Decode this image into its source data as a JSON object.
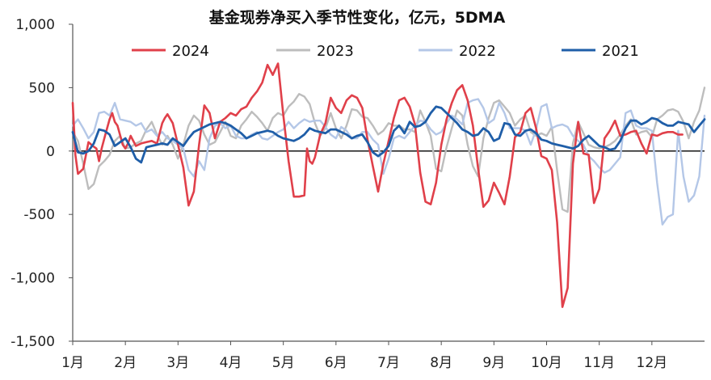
{
  "chart_data": {
    "type": "line",
    "title": "基金现券净买入季节性变化，亿元，5DMA",
    "xlabel": "",
    "ylabel": "",
    "x_range": [
      0,
      12
    ],
    "ylim": [
      -1500,
      1000
    ],
    "y_ticks": [
      1000,
      500,
      0,
      -500,
      -1000,
      -1500
    ],
    "y_tick_labels": [
      "1,000",
      "500",
      "0",
      "-500",
      "-1,000",
      "-1,500"
    ],
    "x_ticks": [
      0,
      1,
      2,
      3,
      4,
      5,
      6,
      7,
      8,
      9,
      10,
      11
    ],
    "x_tick_labels": [
      "1月",
      "2月",
      "3月",
      "4月",
      "5月",
      "6月",
      "7月",
      "8月",
      "9月",
      "10月",
      "11月",
      "12月"
    ],
    "legend_position": "top",
    "grid": false,
    "series": [
      {
        "name": "2024",
        "color": "#e0404a",
        "x": [
          0.0,
          0.05,
          0.1,
          0.2,
          0.3,
          0.38,
          0.45,
          0.5,
          0.55,
          0.62,
          0.7,
          0.75,
          0.8,
          0.85,
          0.95,
          1.0,
          1.05,
          1.1,
          1.2,
          1.3,
          1.4,
          1.5,
          1.6,
          1.7,
          1.75,
          1.8,
          1.9,
          2.0,
          2.1,
          2.2,
          2.3,
          2.4,
          2.5,
          2.6,
          2.7,
          2.8,
          2.9,
          3.0,
          3.1,
          3.2,
          3.3,
          3.4,
          3.5,
          3.6,
          3.7,
          3.8,
          3.9,
          4.0,
          4.1,
          4.2,
          4.3,
          4.4,
          4.45,
          4.5,
          4.55,
          4.6,
          4.7,
          4.8,
          4.9,
          5.0,
          5.1,
          5.2,
          5.3,
          5.4,
          5.5,
          5.6,
          5.7,
          5.8,
          5.9,
          6.0,
          6.1,
          6.2,
          6.3,
          6.4,
          6.5,
          6.6,
          6.7,
          6.8,
          6.9,
          7.0,
          7.1,
          7.2,
          7.3,
          7.4,
          7.5,
          7.6,
          7.7,
          7.8,
          7.9,
          8.0,
          8.1,
          8.2,
          8.3,
          8.4,
          8.5,
          8.6,
          8.7,
          8.8,
          8.9,
          9.0,
          9.1,
          9.2,
          9.3,
          9.4,
          9.5,
          9.6,
          9.7,
          9.8,
          9.9,
          10.0,
          10.1,
          10.2,
          10.3,
          10.4,
          10.5,
          10.6,
          10.7,
          10.8,
          10.9,
          11.0,
          11.1,
          11.2,
          11.3,
          11.4,
          11.5,
          11.58
        ],
        "values": [
          380,
          -30,
          -180,
          -140,
          70,
          40,
          20,
          -80,
          20,
          130,
          250,
          300,
          230,
          200,
          50,
          20,
          60,
          120,
          40,
          60,
          70,
          80,
          60,
          220,
          260,
          290,
          220,
          50,
          -130,
          -430,
          -320,
          50,
          360,
          300,
          100,
          230,
          260,
          300,
          280,
          330,
          350,
          420,
          470,
          540,
          680,
          600,
          690,
          280,
          -80,
          -360,
          -360,
          -350,
          20,
          -80,
          -100,
          -50,
          130,
          220,
          420,
          340,
          300,
          400,
          440,
          420,
          340,
          90,
          -120,
          -320,
          -100,
          80,
          260,
          400,
          420,
          350,
          210,
          -170,
          -400,
          -420,
          -250,
          50,
          250,
          380,
          480,
          520,
          400,
          200,
          -140,
          -440,
          -390,
          -250,
          -330,
          -420,
          -200,
          110,
          150,
          300,
          340,
          180,
          -40,
          -60,
          -150,
          -560,
          -1230,
          -1080,
          -100,
          230,
          -20,
          -30,
          -410,
          -300,
          100,
          160,
          240,
          120,
          130,
          150,
          160,
          60,
          -20,
          130,
          120,
          140,
          150,
          150,
          130,
          130
        ]
      },
      {
        "name": "2023",
        "color": "#bdbdbd",
        "x": [
          0.0,
          0.1,
          0.2,
          0.3,
          0.4,
          0.5,
          0.6,
          0.7,
          0.8,
          0.9,
          1.0,
          1.1,
          1.2,
          1.3,
          1.4,
          1.5,
          1.6,
          1.7,
          1.8,
          1.9,
          2.0,
          2.1,
          2.2,
          2.3,
          2.4,
          2.5,
          2.6,
          2.7,
          2.8,
          2.9,
          3.0,
          3.1,
          3.2,
          3.3,
          3.4,
          3.5,
          3.6,
          3.7,
          3.8,
          3.9,
          4.0,
          4.1,
          4.2,
          4.3,
          4.4,
          4.5,
          4.6,
          4.7,
          4.8,
          4.9,
          5.0,
          5.1,
          5.2,
          5.3,
          5.4,
          5.5,
          5.6,
          5.7,
          5.8,
          5.9,
          6.0,
          6.1,
          6.2,
          6.3,
          6.4,
          6.5,
          6.6,
          6.7,
          6.8,
          6.9,
          7.0,
          7.1,
          7.2,
          7.3,
          7.4,
          7.5,
          7.6,
          7.7,
          7.8,
          7.9,
          8.0,
          8.1,
          8.2,
          8.3,
          8.4,
          8.5,
          8.6,
          8.7,
          8.8,
          8.9,
          9.0,
          9.1,
          9.2,
          9.3,
          9.4,
          9.5,
          9.6,
          9.7,
          9.8,
          9.9,
          10.0,
          10.1,
          10.2,
          10.3,
          10.4,
          10.5,
          10.6,
          10.7,
          10.8,
          10.9,
          11.0,
          11.1,
          11.2,
          11.3,
          11.4,
          11.5,
          11.6,
          11.7,
          11.8,
          11.9,
          12.0
        ],
        "values": [
          150,
          80,
          -100,
          -300,
          -260,
          -120,
          -80,
          -30,
          80,
          120,
          20,
          30,
          60,
          80,
          170,
          230,
          130,
          50,
          120,
          50,
          -60,
          50,
          200,
          280,
          240,
          130,
          50,
          70,
          150,
          230,
          120,
          100,
          200,
          250,
          310,
          270,
          220,
          160,
          260,
          300,
          280,
          350,
          390,
          450,
          430,
          370,
          220,
          120,
          180,
          300,
          180,
          100,
          200,
          330,
          320,
          270,
          260,
          200,
          130,
          160,
          220,
          200,
          200,
          170,
          170,
          150,
          320,
          230,
          120,
          -140,
          -160,
          30,
          180,
          320,
          280,
          50,
          -120,
          -200,
          100,
          260,
          380,
          400,
          350,
          300,
          200,
          250,
          280,
          150,
          120,
          140,
          120,
          190,
          -150,
          -460,
          -480,
          60,
          230,
          140,
          50,
          30,
          20,
          30,
          50,
          80,
          130,
          200,
          250,
          130,
          150,
          160,
          110,
          250,
          280,
          320,
          330,
          310,
          230,
          100,
          230,
          320,
          500
        ]
      },
      {
        "name": "2022",
        "color": "#b4c7e7",
        "x": [
          0.0,
          0.1,
          0.2,
          0.3,
          0.4,
          0.5,
          0.6,
          0.7,
          0.8,
          0.9,
          1.0,
          1.1,
          1.2,
          1.3,
          1.4,
          1.5,
          1.6,
          1.7,
          1.8,
          1.9,
          2.0,
          2.1,
          2.2,
          2.3,
          2.4,
          2.5,
          2.6,
          2.7,
          2.8,
          2.9,
          3.0,
          3.1,
          3.2,
          3.3,
          3.4,
          3.5,
          3.6,
          3.7,
          3.8,
          3.9,
          4.0,
          4.1,
          4.2,
          4.3,
          4.4,
          4.5,
          4.6,
          4.7,
          4.8,
          4.9,
          5.0,
          5.1,
          5.2,
          5.3,
          5.4,
          5.5,
          5.6,
          5.7,
          5.8,
          5.9,
          6.0,
          6.1,
          6.2,
          6.3,
          6.4,
          6.5,
          6.6,
          6.7,
          6.8,
          6.9,
          7.0,
          7.1,
          7.2,
          7.3,
          7.4,
          7.5,
          7.6,
          7.7,
          7.8,
          7.9,
          8.0,
          8.1,
          8.2,
          8.3,
          8.4,
          8.5,
          8.6,
          8.7,
          8.8,
          8.9,
          9.0,
          9.1,
          9.2,
          9.3,
          9.4,
          9.5,
          9.6,
          9.7,
          9.8,
          9.9,
          10.0,
          10.1,
          10.2,
          10.3,
          10.4,
          10.5,
          10.6,
          10.7,
          10.8,
          10.9,
          11.0,
          11.1,
          11.2,
          11.3,
          11.4,
          11.5,
          11.6,
          11.7,
          11.8,
          11.9,
          12.0
        ],
        "values": [
          200,
          250,
          180,
          100,
          150,
          300,
          310,
          280,
          380,
          250,
          240,
          230,
          200,
          220,
          150,
          170,
          120,
          150,
          100,
          80,
          50,
          20,
          -150,
          -200,
          -80,
          -150,
          100,
          200,
          220,
          180,
          200,
          120,
          100,
          100,
          130,
          150,
          100,
          90,
          120,
          150,
          170,
          230,
          180,
          220,
          250,
          230,
          240,
          240,
          190,
          130,
          100,
          190,
          160,
          100,
          100,
          150,
          150,
          90,
          50,
          -180,
          -60,
          100,
          120,
          100,
          150,
          200,
          240,
          230,
          170,
          130,
          150,
          220,
          280,
          250,
          210,
          380,
          400,
          410,
          340,
          220,
          250,
          380,
          300,
          180,
          180,
          180,
          160,
          50,
          170,
          350,
          370,
          180,
          200,
          210,
          190,
          120,
          80,
          50,
          -40,
          -80,
          -130,
          -170,
          -150,
          -100,
          -50,
          300,
          320,
          200,
          180,
          180,
          160,
          -250,
          -580,
          -520,
          -500,
          160,
          -200,
          -400,
          -350,
          -200,
          280
        ]
      },
      {
        "name": "2021",
        "color": "#1f5ea8",
        "x": [
          0.0,
          0.1,
          0.2,
          0.3,
          0.4,
          0.5,
          0.6,
          0.7,
          0.8,
          0.9,
          1.0,
          1.1,
          1.2,
          1.3,
          1.4,
          1.5,
          1.6,
          1.7,
          1.8,
          1.9,
          2.0,
          2.1,
          2.2,
          2.3,
          2.4,
          2.5,
          2.6,
          2.7,
          2.8,
          2.9,
          3.0,
          3.1,
          3.2,
          3.3,
          3.4,
          3.5,
          3.6,
          3.7,
          3.8,
          3.9,
          4.0,
          4.1,
          4.2,
          4.3,
          4.4,
          4.5,
          4.6,
          4.7,
          4.8,
          4.9,
          5.0,
          5.1,
          5.2,
          5.3,
          5.4,
          5.5,
          5.6,
          5.7,
          5.8,
          5.9,
          6.0,
          6.1,
          6.2,
          6.3,
          6.4,
          6.5,
          6.6,
          6.7,
          6.8,
          6.9,
          7.0,
          7.1,
          7.2,
          7.3,
          7.4,
          7.5,
          7.6,
          7.7,
          7.8,
          7.9,
          8.0,
          8.1,
          8.2,
          8.3,
          8.4,
          8.5,
          8.6,
          8.7,
          8.8,
          8.9,
          9.0,
          9.1,
          9.2,
          9.3,
          9.4,
          9.5,
          9.6,
          9.7,
          9.8,
          9.9,
          10.0,
          10.1,
          10.2,
          10.3,
          10.4,
          10.5,
          10.6,
          10.7,
          10.8,
          10.9,
          11.0,
          11.1,
          11.2,
          11.3,
          11.4,
          11.5,
          11.6,
          11.7,
          11.8,
          11.9,
          12.0
        ],
        "values": [
          150,
          -10,
          -20,
          0,
          60,
          170,
          160,
          130,
          40,
          70,
          100,
          30,
          -60,
          -90,
          30,
          40,
          50,
          60,
          50,
          100,
          70,
          40,
          100,
          150,
          170,
          190,
          210,
          220,
          230,
          220,
          200,
          170,
          140,
          100,
          120,
          140,
          150,
          160,
          150,
          120,
          100,
          90,
          80,
          100,
          130,
          180,
          160,
          150,
          140,
          170,
          170,
          150,
          130,
          100,
          120,
          130,
          70,
          -10,
          -40,
          -10,
          40,
          160,
          200,
          140,
          230,
          190,
          200,
          230,
          300,
          350,
          340,
          300,
          260,
          220,
          170,
          150,
          120,
          130,
          180,
          150,
          80,
          100,
          220,
          210,
          130,
          120,
          160,
          170,
          140,
          90,
          80,
          60,
          50,
          40,
          30,
          20,
          40,
          90,
          120,
          80,
          40,
          30,
          10,
          20,
          80,
          180,
          240,
          240,
          210,
          230,
          260,
          250,
          220,
          200,
          200,
          230,
          220,
          210,
          150,
          200,
          250
        ]
      }
    ]
  }
}
